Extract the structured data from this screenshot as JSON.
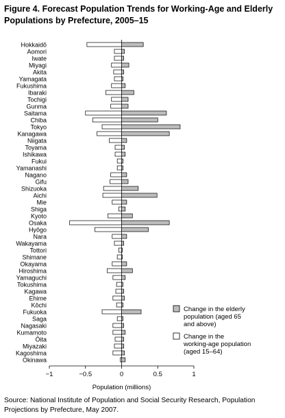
{
  "title": "Figure 4. Forecast Population Trends for Working-Age and Elderly Populations by Prefecture, 2005–15",
  "source": "Source: National Institute of Population and Social Security Research, Population Projections by Prefecture, May 2007.",
  "chart_data": {
    "type": "bar",
    "orientation": "horizontal",
    "xlabel": "Population (millions)",
    "xlim": [
      -1,
      1
    ],
    "xticks": [
      -1,
      -0.5,
      0,
      0.5,
      1
    ],
    "xtick_labels": [
      "−1",
      "−0.5",
      "0",
      "0.5",
      "1"
    ],
    "grid": false,
    "legend_position": "right",
    "colors": {
      "elderly": "#bdbdbd",
      "working": "#ffffff",
      "outline": "#000000"
    },
    "categories": [
      "Hokkaidō",
      "Aomori",
      "Iwate",
      "Miyagi",
      "Akita",
      "Yamagata",
      "Fukushima",
      "Ibaraki",
      "Tochigi",
      "Gunma",
      "Saitama",
      "Chiba",
      "Tokyo",
      "Kanagawa",
      "Niigata",
      "Toyama",
      "Ishikawa",
      "Fukui",
      "Yamanashi",
      "Nagano",
      "Gifu",
      "Shizuoka",
      "Aichi",
      "Mie",
      "Shiga",
      "Kyoto",
      "Osaka",
      "Hyōgo",
      "Nara",
      "Wakayama",
      "Tottori",
      "Shimane",
      "Okayama",
      "Hiroshima",
      "Yamaguchi",
      "Tokushima",
      "Kagawa",
      "Ehime",
      "Kōchi",
      "Fukuoka",
      "Saga",
      "Nagasaki",
      "Kumamoto",
      "Ōita",
      "Miyazaki",
      "Kagoshima",
      "Okinawa"
    ],
    "series": [
      {
        "name": "Change in the elderly population (aged 65 and above)",
        "values": [
          0.3,
          0.04,
          0.03,
          0.1,
          0.03,
          0.02,
          0.05,
          0.17,
          0.09,
          0.09,
          0.62,
          0.5,
          0.81,
          0.66,
          0.07,
          0.04,
          0.05,
          0.02,
          0.02,
          0.07,
          0.09,
          0.23,
          0.49,
          0.07,
          0.05,
          0.15,
          0.66,
          0.37,
          0.07,
          0.03,
          0.01,
          0.01,
          0.07,
          0.15,
          0.05,
          0.02,
          0.03,
          0.04,
          0.02,
          0.27,
          0.02,
          0.03,
          0.05,
          0.03,
          0.03,
          0.04,
          0.05
        ]
      },
      {
        "name": "Change in the working-age population (aged 15–64)",
        "values": [
          -0.48,
          -0.1,
          -0.1,
          -0.14,
          -0.11,
          -0.1,
          -0.14,
          -0.22,
          -0.14,
          -0.15,
          -0.5,
          -0.4,
          -0.27,
          -0.34,
          -0.17,
          -0.09,
          -0.09,
          -0.06,
          -0.06,
          -0.15,
          -0.16,
          -0.25,
          -0.26,
          -0.13,
          -0.04,
          -0.19,
          -0.72,
          -0.37,
          -0.13,
          -0.1,
          -0.04,
          -0.06,
          -0.13,
          -0.2,
          -0.12,
          -0.07,
          -0.08,
          -0.12,
          -0.07,
          -0.27,
          -0.06,
          -0.12,
          -0.12,
          -0.09,
          -0.1,
          -0.12,
          -0.02
        ]
      }
    ]
  }
}
